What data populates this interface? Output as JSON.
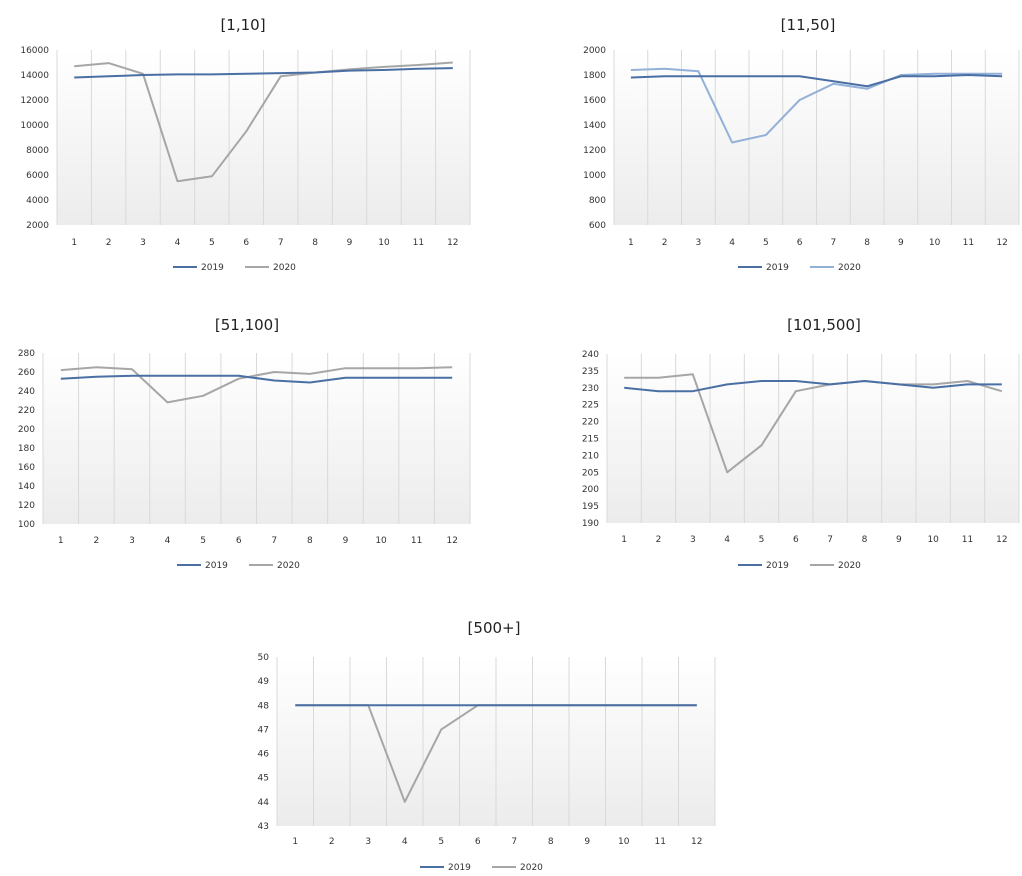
{
  "chart_data": [
    {
      "type": "line",
      "title": "[1,10]",
      "categories": [
        "1",
        "2",
        "3",
        "4",
        "5",
        "6",
        "7",
        "8",
        "9",
        "10",
        "11",
        "12"
      ],
      "yticks": [
        "2000",
        "4000",
        "6000",
        "8000",
        "10000",
        "12000",
        "14000",
        "16000"
      ],
      "ylim": [
        2000,
        16000
      ],
      "series": [
        {
          "name": "2019",
          "color": "#4a6fa5",
          "values": [
            13800,
            13900,
            14000,
            14050,
            14050,
            14100,
            14150,
            14200,
            14350,
            14400,
            14500,
            14550
          ]
        },
        {
          "name": "2020",
          "color": "#a6a6a6",
          "values": [
            14700,
            14950,
            14100,
            5500,
            5900,
            9500,
            13900,
            14200,
            14450,
            14650,
            14800,
            15000
          ]
        }
      ]
    },
    {
      "type": "line",
      "title": "[11,50]",
      "categories": [
        "1",
        "2",
        "3",
        "4",
        "5",
        "6",
        "7",
        "8",
        "9",
        "10",
        "11",
        "12"
      ],
      "yticks": [
        "600",
        "800",
        "1000",
        "1200",
        "1400",
        "1600",
        "1800",
        "2000"
      ],
      "ylim": [
        600,
        2000
      ],
      "series": [
        {
          "name": "2019",
          "color": "#4a6fa5",
          "values": [
            1780,
            1790,
            1790,
            1790,
            1790,
            1790,
            1750,
            1710,
            1790,
            1790,
            1800,
            1790
          ]
        },
        {
          "name": "2020",
          "color": "#92b0d8",
          "values": [
            1840,
            1850,
            1830,
            1260,
            1320,
            1600,
            1730,
            1690,
            1800,
            1810,
            1810,
            1810
          ]
        }
      ]
    },
    {
      "type": "line",
      "title": "[51,100]",
      "categories": [
        "1",
        "2",
        "3",
        "4",
        "5",
        "6",
        "7",
        "8",
        "9",
        "10",
        "11",
        "12"
      ],
      "yticks": [
        "100",
        "120",
        "140",
        "160",
        "180",
        "200",
        "220",
        "240",
        "260",
        "280"
      ],
      "ylim": [
        100,
        280
      ],
      "series": [
        {
          "name": "2019",
          "color": "#4a6fa5",
          "values": [
            253,
            255,
            256,
            256,
            256,
            256,
            251,
            249,
            254,
            254,
            254,
            254
          ]
        },
        {
          "name": "2020",
          "color": "#a6a6a6",
          "values": [
            262,
            265,
            263,
            228,
            235,
            253,
            260,
            258,
            264,
            264,
            264,
            265
          ]
        }
      ]
    },
    {
      "type": "line",
      "title": "[101,500]",
      "categories": [
        "1",
        "2",
        "3",
        "4",
        "5",
        "6",
        "7",
        "8",
        "9",
        "10",
        "11",
        "12"
      ],
      "yticks": [
        "190",
        "195",
        "200",
        "205",
        "210",
        "215",
        "220",
        "225",
        "230",
        "235",
        "240"
      ],
      "ylim": [
        190,
        240
      ],
      "series": [
        {
          "name": "2019",
          "color": "#4a6fa5",
          "values": [
            230,
            229,
            229,
            231,
            232,
            232,
            231,
            232,
            231,
            230,
            231,
            231
          ]
        },
        {
          "name": "2020",
          "color": "#a6a6a6",
          "values": [
            233,
            233,
            234,
            205,
            213,
            229,
            231,
            232,
            231,
            231,
            232,
            229
          ]
        }
      ]
    },
    {
      "type": "line",
      "title": "[500+]",
      "categories": [
        "1",
        "2",
        "3",
        "4",
        "5",
        "6",
        "7",
        "8",
        "9",
        "10",
        "11",
        "12"
      ],
      "yticks": [
        "43",
        "44",
        "45",
        "46",
        "47",
        "48",
        "49",
        "50"
      ],
      "ylim": [
        43,
        50
      ],
      "series": [
        {
          "name": "2019",
          "color": "#4a6fa5",
          "values": [
            48,
            48,
            48,
            48,
            48,
            48,
            48,
            48,
            48,
            48,
            48,
            48
          ]
        },
        {
          "name": "2020",
          "color": "#a6a6a6",
          "values": [
            48,
            48,
            48,
            44,
            47,
            48,
            48,
            48,
            48,
            48,
            48,
            48
          ]
        }
      ]
    }
  ]
}
